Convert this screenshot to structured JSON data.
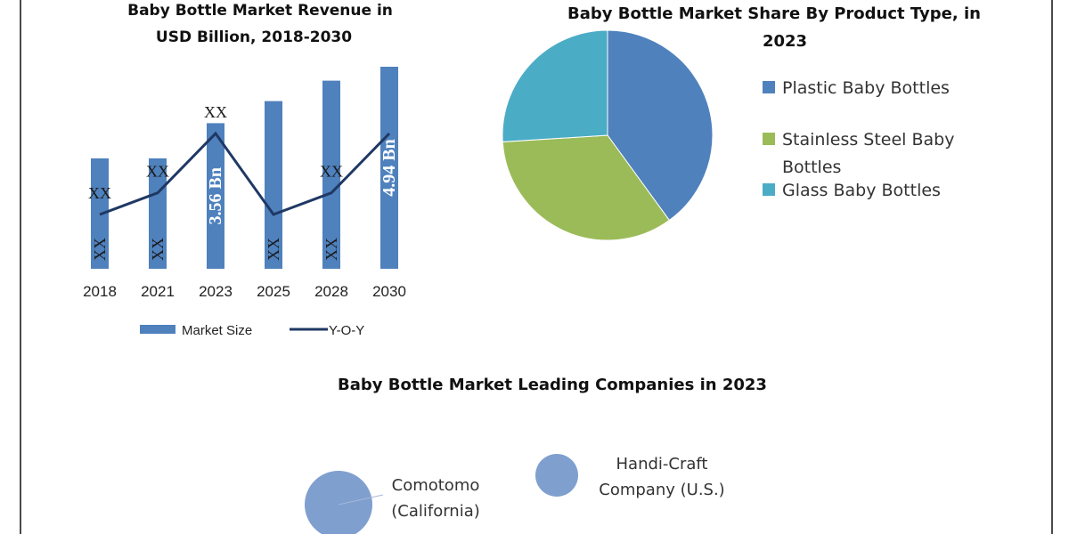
{
  "chart_data": [
    {
      "type": "bar",
      "title_lines": [
        "Baby Bottle Market Revenue in",
        "USD Billion, 2018-2030"
      ],
      "categories": [
        "2018",
        "2021",
        "2023",
        "2025",
        "2028",
        "2030"
      ],
      "series": [
        {
          "name": "Market Size",
          "kind": "bar",
          "values": [
            2.7,
            2.7,
            3.56,
            4.1,
            4.6,
            4.94
          ],
          "labels": [
            "XX",
            "XX",
            "3.56 Bn",
            "XX",
            "XX",
            "4.94 Bn"
          ],
          "color": "#4f81bd"
        },
        {
          "name": "Y-O-Y",
          "kind": "line",
          "values": [
            2.1,
            2.9,
            5.1,
            2.1,
            2.9,
            5.1
          ],
          "labels": [
            "XX",
            "XX",
            "XX",
            "",
            "XX",
            ""
          ],
          "color": "#1f3864"
        }
      ],
      "legend_position": "bottom"
    },
    {
      "type": "pie",
      "title_lines": [
        "Baby Bottle Market Share By Product Type, in",
        "2023"
      ],
      "slices": [
        {
          "label": "Plastic Baby Bottles",
          "value": 40,
          "color": "#4f81bd"
        },
        {
          "label": "Stainless Steel Baby Bottles",
          "value": 34,
          "color": "#9bbb59"
        },
        {
          "label": "Glass Baby Bottles",
          "value": 26,
          "color": "#4bacc6"
        }
      ],
      "legend_lines": [
        [
          "Plastic Baby Bottles"
        ],
        [
          "Stainless Steel Baby",
          "Bottles"
        ],
        [
          "Glass Baby Bottles"
        ]
      ],
      "legend_position": "right"
    },
    {
      "type": "scatter",
      "title": "Baby Bottle Market Leading Companies in 2023",
      "points": [
        {
          "label_lines": [
            "Comotomo",
            "(California)"
          ],
          "size": 3,
          "color": "#7f9fcf"
        },
        {
          "label_lines": [
            "Handi-Craft",
            "Company (U.S.)"
          ],
          "size": 1,
          "color": "#7f9fcf"
        }
      ]
    }
  ]
}
